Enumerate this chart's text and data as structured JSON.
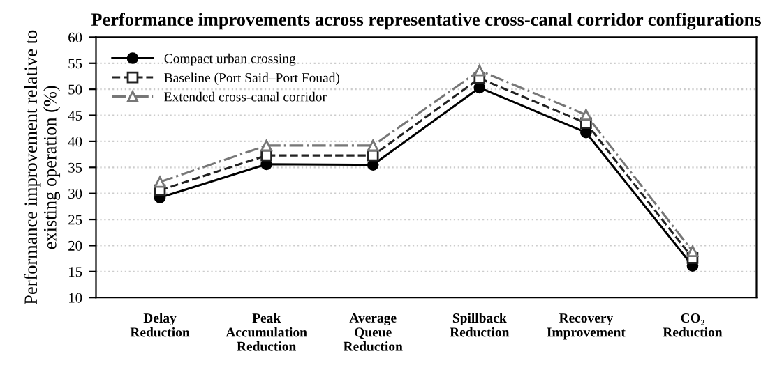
{
  "chart_data": {
    "type": "line",
    "title": "Performance improvements across representative cross-canal corridor configurations",
    "ylabel": "Performance improvement relative to\nexisting operation (%)",
    "categories": [
      "Delay\nReduction",
      "Peak\nAccumulation\nReduction",
      "Average\nQueue\nReduction",
      "Spillback\nReduction",
      "Recovery\nImprovement",
      "CO₂\nReduction"
    ],
    "series": [
      {
        "name": "Compact urban crossing",
        "color": "#000000",
        "marker": "circle",
        "line_style": "solid",
        "values": [
          29.2,
          35.6,
          35.5,
          50.3,
          41.7,
          16.1
        ]
      },
      {
        "name": "Baseline (Port Said–Port Fouad)",
        "color": "#222222",
        "marker": "square",
        "line_style": "dashed",
        "values": [
          30.6,
          37.3,
          37.3,
          52.1,
          43.5,
          17.6
        ]
      },
      {
        "name": "Extended cross-canal corridor",
        "color": "#777777",
        "marker": "triangle",
        "line_style": "dashdot",
        "values": [
          32.2,
          39.2,
          39.2,
          53.6,
          45.1,
          18.9
        ]
      }
    ],
    "ylim": [
      10,
      60
    ],
    "yticks": [
      10,
      15,
      20,
      25,
      30,
      35,
      40,
      45,
      50,
      55,
      60
    ],
    "grid": "y",
    "legend": "top left"
  }
}
